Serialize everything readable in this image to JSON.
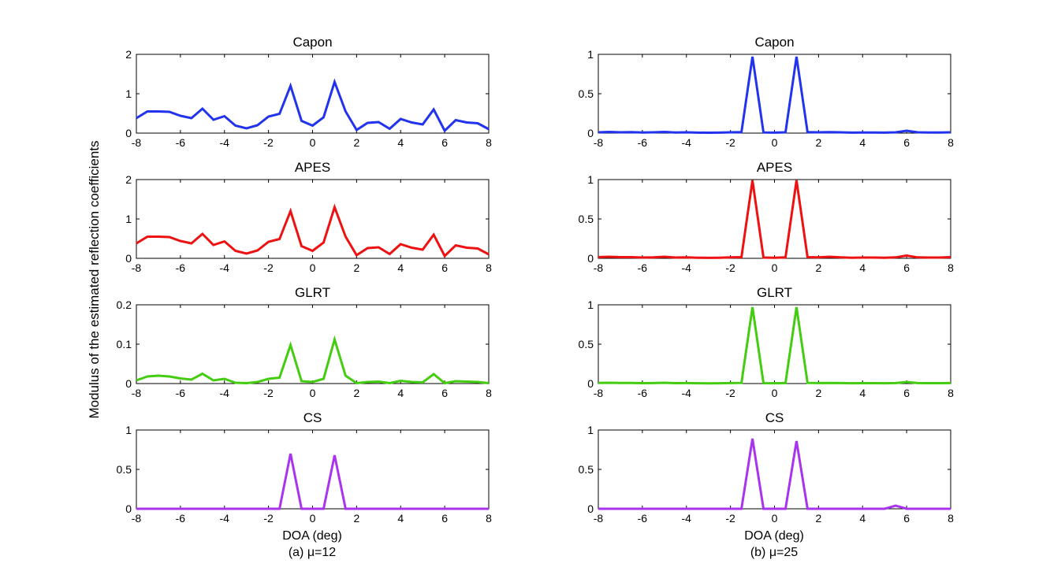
{
  "figure": {
    "ylabel": "Modulus of the estimated reflection coefficients",
    "columns": [
      {
        "xlabel": "DOA (deg)",
        "caption": "(a) μ=12"
      },
      {
        "xlabel": "DOA (deg)",
        "caption": "(b)  μ=25"
      }
    ]
  },
  "chart_data": [
    {
      "type": "line",
      "title": "Capon",
      "column": 0,
      "row": 0,
      "color": "#2233ee",
      "xlim": [
        -8,
        8
      ],
      "ylim": [
        0,
        2
      ],
      "xticks": [
        -8,
        -6,
        -4,
        -2,
        0,
        2,
        4,
        6,
        8
      ],
      "yticks": [
        0,
        1,
        2
      ],
      "x": [
        -8,
        -7.5,
        -7,
        -6.5,
        -6,
        -5.5,
        -5,
        -4.5,
        -4,
        -3.5,
        -3,
        -2.5,
        -2,
        -1.5,
        -1,
        -0.5,
        0,
        0.5,
        1,
        1.5,
        2,
        2.5,
        3,
        3.5,
        4,
        4.5,
        5,
        5.5,
        6,
        6.5,
        7,
        7.5,
        8
      ],
      "y": [
        0.38,
        0.55,
        0.55,
        0.54,
        0.44,
        0.38,
        0.62,
        0.34,
        0.43,
        0.19,
        0.12,
        0.2,
        0.42,
        0.49,
        1.2,
        0.31,
        0.19,
        0.4,
        1.3,
        0.55,
        0.08,
        0.26,
        0.28,
        0.11,
        0.36,
        0.27,
        0.22,
        0.6,
        0.06,
        0.33,
        0.27,
        0.25,
        0.1
      ]
    },
    {
      "type": "line",
      "title": "APES",
      "column": 0,
      "row": 1,
      "color": "#ee1111",
      "xlim": [
        -8,
        8
      ],
      "ylim": [
        0,
        2
      ],
      "xticks": [
        -8,
        -6,
        -4,
        -2,
        0,
        2,
        4,
        6,
        8
      ],
      "yticks": [
        0,
        1,
        2
      ],
      "x": [
        -8,
        -7.5,
        -7,
        -6.5,
        -6,
        -5.5,
        -5,
        -4.5,
        -4,
        -3.5,
        -3,
        -2.5,
        -2,
        -1.5,
        -1,
        -0.5,
        0,
        0.5,
        1,
        1.5,
        2,
        2.5,
        3,
        3.5,
        4,
        4.5,
        5,
        5.5,
        6,
        6.5,
        7,
        7.5,
        8
      ],
      "y": [
        0.38,
        0.55,
        0.55,
        0.54,
        0.44,
        0.38,
        0.62,
        0.34,
        0.43,
        0.19,
        0.12,
        0.2,
        0.42,
        0.49,
        1.2,
        0.31,
        0.19,
        0.4,
        1.3,
        0.55,
        0.08,
        0.26,
        0.28,
        0.11,
        0.36,
        0.27,
        0.22,
        0.6,
        0.06,
        0.33,
        0.27,
        0.25,
        0.1
      ]
    },
    {
      "type": "line",
      "title": "GLRT",
      "column": 0,
      "row": 2,
      "color": "#44cc11",
      "xlim": [
        -8,
        8
      ],
      "ylim": [
        0,
        0.2
      ],
      "xticks": [
        -8,
        -6,
        -4,
        -2,
        0,
        2,
        4,
        6,
        8
      ],
      "yticks": [
        0,
        0.1,
        0.2
      ],
      "x": [
        -8,
        -7.5,
        -7,
        -6.5,
        -6,
        -5.5,
        -5,
        -4.5,
        -4,
        -3.5,
        -3,
        -2.5,
        -2,
        -1.5,
        -1,
        -0.5,
        0,
        0.5,
        1,
        1.5,
        2,
        2.5,
        3,
        3.5,
        4,
        4.5,
        5,
        5.5,
        6,
        6.5,
        7,
        7.5,
        8
      ],
      "y": [
        0.008,
        0.018,
        0.02,
        0.018,
        0.013,
        0.01,
        0.025,
        0.008,
        0.012,
        0.002,
        0.001,
        0.004,
        0.012,
        0.015,
        0.098,
        0.006,
        0.004,
        0.012,
        0.112,
        0.02,
        0.001,
        0.004,
        0.005,
        0.001,
        0.007,
        0.004,
        0.003,
        0.024,
        0.001,
        0.006,
        0.005,
        0.004,
        0.001
      ]
    },
    {
      "type": "line",
      "title": "CS",
      "column": 0,
      "row": 3,
      "color": "#aa33ee",
      "xlim": [
        -8,
        8
      ],
      "ylim": [
        0,
        1
      ],
      "xticks": [
        -8,
        -6,
        -4,
        -2,
        0,
        2,
        4,
        6,
        8
      ],
      "yticks": [
        0,
        0.5,
        1
      ],
      "x": [
        -8,
        -7.5,
        -7,
        -6.5,
        -6,
        -5.5,
        -5,
        -4.5,
        -4,
        -3.5,
        -3,
        -2.5,
        -2,
        -1.5,
        -1,
        -0.5,
        0,
        0.5,
        1,
        1.5,
        2,
        2.5,
        3,
        3.5,
        4,
        4.5,
        5,
        5.5,
        6,
        6.5,
        7,
        7.5,
        8
      ],
      "y": [
        0,
        0,
        0,
        0,
        0,
        0,
        0,
        0,
        0,
        0,
        0,
        0,
        0,
        0,
        0.7,
        0,
        0,
        0,
        0.68,
        0,
        0,
        0,
        0,
        0,
        0,
        0,
        0,
        0,
        0,
        0,
        0,
        0,
        0
      ]
    },
    {
      "type": "line",
      "title": "Capon",
      "column": 1,
      "row": 0,
      "color": "#2233ee",
      "xlim": [
        -8,
        8
      ],
      "ylim": [
        0,
        1
      ],
      "xticks": [
        -8,
        -6,
        -4,
        -2,
        0,
        2,
        4,
        6,
        8
      ],
      "yticks": [
        0,
        0.5,
        1
      ],
      "x": [
        -8,
        -7.5,
        -7,
        -6.5,
        -6,
        -5.5,
        -5,
        -4.5,
        -4,
        -3.5,
        -3,
        -2.5,
        -2,
        -1.5,
        -1,
        -0.5,
        0,
        0.5,
        1,
        1.5,
        2,
        2.5,
        3,
        3.5,
        4,
        4.5,
        5,
        5.5,
        6,
        6.5,
        7,
        7.5,
        8
      ],
      "y": [
        0.01,
        0.015,
        0.01,
        0.012,
        0.008,
        0.01,
        0.015,
        0.008,
        0.01,
        0.006,
        0.005,
        0.006,
        0.01,
        0.012,
        0.97,
        0.008,
        0.006,
        0.01,
        0.97,
        0.012,
        0.01,
        0.012,
        0.01,
        0.006,
        0.008,
        0.008,
        0.006,
        0.01,
        0.03,
        0.01,
        0.008,
        0.008,
        0.01
      ]
    },
    {
      "type": "line",
      "title": "APES",
      "column": 1,
      "row": 1,
      "color": "#ee1111",
      "xlim": [
        -8,
        8
      ],
      "ylim": [
        0,
        1
      ],
      "xticks": [
        -8,
        -6,
        -4,
        -2,
        0,
        2,
        4,
        6,
        8
      ],
      "yticks": [
        0,
        0.5,
        1
      ],
      "x": [
        -8,
        -7.5,
        -7,
        -6.5,
        -6,
        -5.5,
        -5,
        -4.5,
        -4,
        -3.5,
        -3,
        -2.5,
        -2,
        -1.5,
        -1,
        -0.5,
        0,
        0.5,
        1,
        1.5,
        2,
        2.5,
        3,
        3.5,
        4,
        4.5,
        5,
        5.5,
        6,
        6.5,
        7,
        7.5,
        8
      ],
      "y": [
        0.015,
        0.02,
        0.015,
        0.015,
        0.01,
        0.012,
        0.02,
        0.01,
        0.012,
        0.008,
        0.006,
        0.008,
        0.012,
        0.015,
        0.99,
        0.01,
        0.008,
        0.012,
        0.99,
        0.015,
        0.012,
        0.02,
        0.012,
        0.008,
        0.01,
        0.01,
        0.008,
        0.012,
        0.035,
        0.012,
        0.01,
        0.01,
        0.015
      ]
    },
    {
      "type": "line",
      "title": "GLRT",
      "column": 1,
      "row": 2,
      "color": "#44cc11",
      "xlim": [
        -8,
        8
      ],
      "ylim": [
        0,
        1
      ],
      "xticks": [
        -8,
        -6,
        -4,
        -2,
        0,
        2,
        4,
        6,
        8
      ],
      "yticks": [
        0,
        0.5,
        1
      ],
      "x": [
        -8,
        -7.5,
        -7,
        -6.5,
        -6,
        -5.5,
        -5,
        -4.5,
        -4,
        -3.5,
        -3,
        -2.5,
        -2,
        -1.5,
        -1,
        -0.5,
        0,
        0.5,
        1,
        1.5,
        2,
        2.5,
        3,
        3.5,
        4,
        4.5,
        5,
        5.5,
        6,
        6.5,
        7,
        7.5,
        8
      ],
      "y": [
        0.008,
        0.01,
        0.008,
        0.008,
        0.005,
        0.006,
        0.01,
        0.005,
        0.006,
        0.004,
        0.003,
        0.004,
        0.006,
        0.008,
        0.97,
        0.005,
        0.004,
        0.006,
        0.97,
        0.008,
        0.006,
        0.008,
        0.006,
        0.004,
        0.005,
        0.005,
        0.004,
        0.006,
        0.02,
        0.006,
        0.005,
        0.005,
        0.006
      ]
    },
    {
      "type": "line",
      "title": "CS",
      "column": 1,
      "row": 3,
      "color": "#aa33ee",
      "xlim": [
        -8,
        8
      ],
      "ylim": [
        0,
        1
      ],
      "xticks": [
        -8,
        -6,
        -4,
        -2,
        0,
        2,
        4,
        6,
        8
      ],
      "yticks": [
        0,
        0.5,
        1
      ],
      "x": [
        -8,
        -7.5,
        -7,
        -6.5,
        -6,
        -5.5,
        -5,
        -4.5,
        -4,
        -3.5,
        -3,
        -2.5,
        -2,
        -1.5,
        -1,
        -0.5,
        0,
        0.5,
        1,
        1.5,
        2,
        2.5,
        3,
        3.5,
        4,
        4.5,
        5,
        5.5,
        6,
        6.5,
        7,
        7.5,
        8
      ],
      "y": [
        0,
        0,
        0,
        0,
        0,
        0,
        0,
        0,
        0,
        0,
        0,
        0,
        0,
        0,
        0.89,
        0,
        0,
        0,
        0.86,
        0,
        0,
        0,
        0,
        0,
        0,
        0,
        0,
        0.04,
        0,
        0,
        0,
        0,
        0
      ]
    }
  ]
}
